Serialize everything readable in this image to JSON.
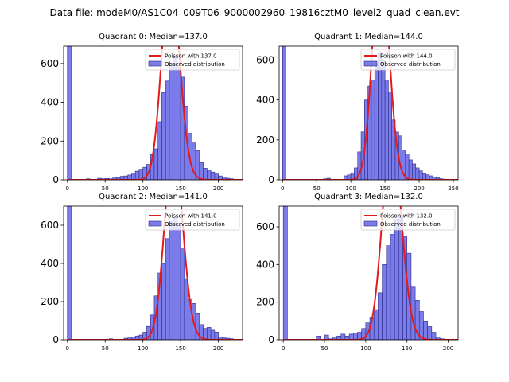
{
  "figure": {
    "suptitle": "Data file: modeM0/AS1C04_009T06_9000002960_19816cztM0_level2_quad_clean.evt"
  },
  "colors": {
    "bar_fill": "#7b7bea",
    "bar_edge": "#2a2a88",
    "line": "#e31a1c",
    "axes": "#000000"
  },
  "chart_data": [
    {
      "type": "bar",
      "title": "Quadrant 0: Median=137.0",
      "xlim": [
        -5,
        232
      ],
      "ylim": [
        0,
        690
      ],
      "xticks": [
        0,
        50,
        100,
        150,
        200
      ],
      "yticks": [
        0,
        200,
        400,
        600
      ],
      "bin_width": 5,
      "legend": [
        "Poisson with 137.0",
        "Observed distribution"
      ],
      "legend_position": "upper right",
      "bins": [
        [
          0,
          690
        ],
        [
          15,
          3
        ],
        [
          25,
          5
        ],
        [
          40,
          8
        ],
        [
          45,
          5
        ],
        [
          50,
          7
        ],
        [
          55,
          5
        ],
        [
          60,
          10
        ],
        [
          65,
          12
        ],
        [
          70,
          18
        ],
        [
          75,
          20
        ],
        [
          80,
          25
        ],
        [
          85,
          35
        ],
        [
          90,
          45
        ],
        [
          95,
          55
        ],
        [
          100,
          65
        ],
        [
          105,
          80
        ],
        [
          110,
          130
        ],
        [
          115,
          160
        ],
        [
          120,
          300
        ],
        [
          125,
          450
        ],
        [
          130,
          510
        ],
        [
          135,
          600
        ],
        [
          140,
          640
        ],
        [
          145,
          580
        ],
        [
          150,
          530
        ],
        [
          155,
          380
        ],
        [
          160,
          240
        ],
        [
          165,
          190
        ],
        [
          170,
          150
        ],
        [
          175,
          90
        ],
        [
          180,
          60
        ],
        [
          185,
          50
        ],
        [
          190,
          40
        ],
        [
          195,
          30
        ],
        [
          200,
          20
        ],
        [
          205,
          15
        ],
        [
          210,
          8
        ],
        [
          215,
          5
        ],
        [
          220,
          3
        ]
      ],
      "poisson_mean": 137.0
    },
    {
      "type": "bar",
      "title": "Quadrant 1: Median=144.0",
      "xlim": [
        -5,
        257
      ],
      "ylim": [
        0,
        670
      ],
      "xticks": [
        0,
        50,
        100,
        150,
        200,
        250
      ],
      "yticks": [
        0,
        200,
        400,
        600
      ],
      "bin_width": 5,
      "legend": [
        "Poisson with 144.0",
        "Observed distribution"
      ],
      "legend_position": "upper right",
      "bins": [
        [
          0,
          670
        ],
        [
          60,
          5
        ],
        [
          65,
          8
        ],
        [
          75,
          3
        ],
        [
          90,
          20
        ],
        [
          95,
          25
        ],
        [
          100,
          35
        ],
        [
          105,
          60
        ],
        [
          110,
          140
        ],
        [
          115,
          240
        ],
        [
          120,
          400
        ],
        [
          125,
          470
        ],
        [
          130,
          500
        ],
        [
          135,
          580
        ],
        [
          140,
          640
        ],
        [
          145,
          600
        ],
        [
          150,
          500
        ],
        [
          155,
          440
        ],
        [
          160,
          300
        ],
        [
          165,
          240
        ],
        [
          170,
          220
        ],
        [
          175,
          150
        ],
        [
          180,
          130
        ],
        [
          185,
          100
        ],
        [
          190,
          80
        ],
        [
          195,
          60
        ],
        [
          200,
          45
        ],
        [
          205,
          30
        ],
        [
          210,
          25
        ],
        [
          215,
          20
        ],
        [
          220,
          15
        ],
        [
          225,
          10
        ],
        [
          230,
          5
        ],
        [
          235,
          3
        ]
      ],
      "poisson_mean": 144.0
    },
    {
      "type": "bar",
      "title": "Quadrant 2: Median=141.0",
      "xlim": [
        -5,
        232
      ],
      "ylim": [
        0,
        700
      ],
      "xticks": [
        0,
        50,
        100,
        150,
        200
      ],
      "yticks": [
        0,
        200,
        400,
        600
      ],
      "bin_width": 5,
      "legend": [
        "Poisson with 141.0",
        "Observed distribution"
      ],
      "legend_position": "upper right",
      "bins": [
        [
          0,
          700
        ],
        [
          40,
          3
        ],
        [
          55,
          5
        ],
        [
          70,
          3
        ],
        [
          75,
          8
        ],
        [
          80,
          10
        ],
        [
          85,
          15
        ],
        [
          90,
          20
        ],
        [
          95,
          25
        ],
        [
          100,
          40
        ],
        [
          105,
          70
        ],
        [
          110,
          130
        ],
        [
          115,
          230
        ],
        [
          120,
          350
        ],
        [
          125,
          400
        ],
        [
          130,
          530
        ],
        [
          135,
          620
        ],
        [
          140,
          640
        ],
        [
          145,
          600
        ],
        [
          150,
          480
        ],
        [
          155,
          320
        ],
        [
          160,
          210
        ],
        [
          165,
          190
        ],
        [
          170,
          140
        ],
        [
          175,
          80
        ],
        [
          180,
          60
        ],
        [
          185,
          65
        ],
        [
          190,
          50
        ],
        [
          195,
          40
        ],
        [
          200,
          15
        ],
        [
          205,
          10
        ],
        [
          210,
          8
        ],
        [
          215,
          5
        ]
      ],
      "poisson_mean": 141.0
    },
    {
      "type": "bar",
      "title": "Quadrant 3: Median=132.0",
      "xlim": [
        -5,
        212
      ],
      "ylim": [
        0,
        710
      ],
      "xticks": [
        0,
        50,
        100,
        150,
        200
      ],
      "yticks": [
        0,
        200,
        400,
        600
      ],
      "bin_width": 5,
      "legend": [
        "Poisson with 132.0",
        "Observed distribution"
      ],
      "legend_position": "upper right",
      "bins": [
        [
          0,
          710
        ],
        [
          40,
          20
        ],
        [
          45,
          3
        ],
        [
          50,
          25
        ],
        [
          55,
          5
        ],
        [
          60,
          10
        ],
        [
          65,
          20
        ],
        [
          70,
          30
        ],
        [
          75,
          20
        ],
        [
          80,
          30
        ],
        [
          85,
          35
        ],
        [
          90,
          40
        ],
        [
          95,
          60
        ],
        [
          100,
          90
        ],
        [
          105,
          120
        ],
        [
          110,
          160
        ],
        [
          115,
          250
        ],
        [
          120,
          400
        ],
        [
          125,
          500
        ],
        [
          130,
          560
        ],
        [
          135,
          640
        ],
        [
          140,
          660
        ],
        [
          145,
          550
        ],
        [
          150,
          460
        ],
        [
          155,
          280
        ],
        [
          160,
          210
        ],
        [
          165,
          150
        ],
        [
          170,
          100
        ],
        [
          175,
          70
        ],
        [
          180,
          40
        ],
        [
          185,
          15
        ],
        [
          190,
          5
        ]
      ],
      "poisson_mean": 132.0
    }
  ]
}
